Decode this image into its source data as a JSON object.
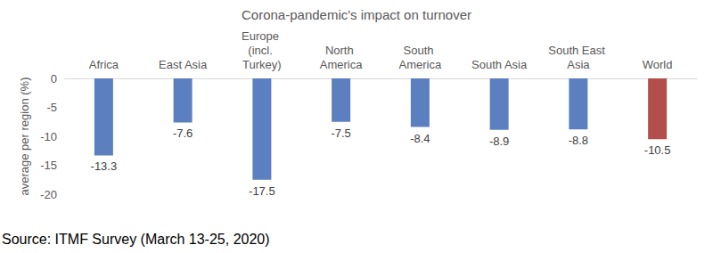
{
  "chart_data": {
    "type": "bar",
    "title": "Corona-pandemic's impact on turnover",
    "y_label": "average per region (%)",
    "source": "Source: ITMF Survey (March 13-25, 2020)",
    "categories": [
      "Africa",
      "East Asia",
      "Europe (incl. Turkey)",
      "North America",
      "South America",
      "South Asia",
      "South East Asia",
      "World"
    ],
    "values": [
      -13.3,
      -7.6,
      -17.5,
      -7.5,
      -8.4,
      -8.9,
      -8.8,
      -10.5
    ],
    "colors": [
      "#5b7fbf",
      "#5b7fbf",
      "#5b7fbf",
      "#5b7fbf",
      "#5b7fbf",
      "#5b7fbf",
      "#5b7fbf",
      "#b24f4a"
    ],
    "ylim": [
      -20,
      0
    ],
    "yticks": [
      0,
      -5,
      -10,
      -15,
      -20
    ],
    "grid": false,
    "data_labels": true
  }
}
